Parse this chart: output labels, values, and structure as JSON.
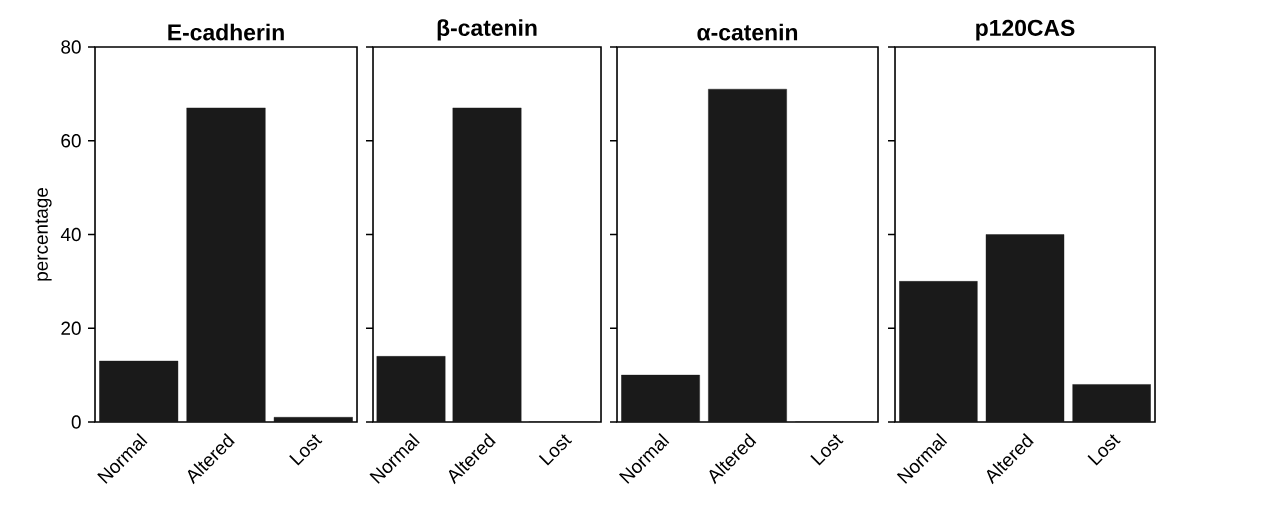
{
  "chart_data": [
    {
      "type": "bar",
      "title": "E-cadherin",
      "ylabel": "percentage",
      "categories": [
        "Normal",
        "Altered",
        "Lost"
      ],
      "values": [
        13,
        67,
        1
      ],
      "color": "#1a1a1a",
      "ylim": [
        0,
        80
      ],
      "yticks": [
        0,
        20,
        40,
        60,
        80
      ]
    },
    {
      "type": "bar",
      "title": "β-catenin",
      "categories": [
        "Normal",
        "Altered",
        "Lost"
      ],
      "values": [
        14,
        67,
        0
      ],
      "color": "#1a1a1a",
      "ylim": [
        0,
        80
      ],
      "yticks": [
        0,
        20,
        40,
        60,
        80
      ],
      "tick_labels": "x"
    },
    {
      "type": "bar",
      "title": "α-catenin",
      "categories": [
        "Normal",
        "Altered",
        "Lost"
      ],
      "values": [
        10,
        71,
        0
      ],
      "color": "#1a1a1a",
      "ylim": [
        0,
        80
      ],
      "yticks": [
        0,
        20,
        40,
        60,
        80
      ],
      "tick_labels": "x"
    },
    {
      "type": "bar",
      "title": "p120CAS",
      "categories": [
        "Normal",
        "Altered",
        "Lost"
      ],
      "values": [
        30,
        40,
        8
      ],
      "color": "#1a1a1a",
      "ylim": [
        0,
        80
      ],
      "yticks": [
        0,
        20,
        40,
        60,
        80
      ],
      "tick_labels": "x"
    }
  ]
}
